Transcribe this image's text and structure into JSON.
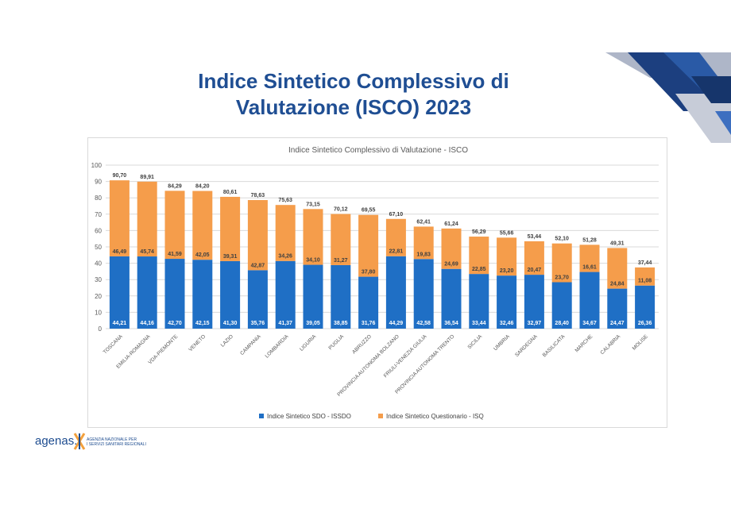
{
  "slide": {
    "title_line1": "Indice Sintetico Complessivo di",
    "title_line2": "Valutazione (ISCO) 2023"
  },
  "colors": {
    "title": "#1f4e93",
    "series_issdo": "#1f6fc5",
    "series_isq": "#f59d4b",
    "deco_dark": "#1c3f7f",
    "deco_light": "#9aa3b8"
  },
  "logo": {
    "name": "agenas.",
    "tagline_1": "AGENZIA NAZIONALE PER",
    "tagline_2": "I SERVIZI SANITARI REGIONALI"
  },
  "chart_data": {
    "type": "bar",
    "stacked": true,
    "title": "Indice Sintetico Complessivo di Valutazione - ISCO",
    "ylim": [
      0,
      100
    ],
    "yticks": [
      0,
      10,
      20,
      30,
      40,
      50,
      60,
      70,
      80,
      90,
      100
    ],
    "grid": true,
    "legend_position": "bottom",
    "categories": [
      "TOSCANA",
      "EMILIA-ROMAGNA",
      "VDA-PIEMONTE",
      "VENETO",
      "LAZIO",
      "CAMPANIA",
      "LOMBARDIA",
      "LIGURIA",
      "PUGLIA",
      "ABRUZZO",
      "PROVINCIA AUTONOMA BOLZANO",
      "FRIULI-VENEZIA GIULIA",
      "PROVINCIA AUTONOMA TRENTO",
      "SICILIA",
      "UMBRIA",
      "SARDEGNA",
      "BASILICATA",
      "MARCHE",
      "CALABRIA",
      "MOLISE"
    ],
    "series": [
      {
        "name": "Indice Sintetico SDO - ISSDO",
        "values": [
          44.21,
          44.16,
          42.7,
          42.15,
          41.3,
          35.76,
          41.37,
          39.05,
          38.85,
          31.76,
          44.29,
          42.58,
          36.54,
          33.44,
          32.46,
          32.97,
          28.4,
          34.67,
          24.47,
          26.36
        ],
        "labels": [
          "44,21",
          "44,16",
          "42,70",
          "42,15",
          "41,30",
          "35,76",
          "41,37",
          "39,05",
          "38,85",
          "31,76",
          "44,29",
          "42,58",
          "36,54",
          "33,44",
          "32,46",
          "32,97",
          "28,40",
          "34,67",
          "24,47",
          "26,36"
        ]
      },
      {
        "name": "Indice Sintetico Questionario - ISQ",
        "values": [
          46.49,
          45.74,
          41.59,
          42.05,
          39.31,
          42.87,
          34.26,
          34.1,
          31.27,
          37.8,
          22.81,
          19.83,
          24.69,
          22.85,
          23.2,
          20.47,
          23.7,
          16.61,
          24.84,
          11.08
        ],
        "labels": [
          "46,49",
          "45,74",
          "41,59",
          "42,05",
          "39,31",
          "42,87",
          "34,26",
          "34,10",
          "31,27",
          "37,80",
          "22,81",
          "19,83",
          "24,69",
          "22,85",
          "23,20",
          "20,47",
          "23,70",
          "16,61",
          "24,84",
          "11,08"
        ]
      }
    ],
    "totals": [
      90.7,
      89.91,
      84.29,
      84.2,
      80.61,
      78.63,
      75.63,
      73.15,
      70.12,
      69.55,
      67.1,
      62.41,
      61.24,
      56.29,
      55.66,
      53.44,
      52.1,
      51.28,
      49.31,
      37.44
    ],
    "total_labels": [
      "90,70",
      "89,91",
      "84,29",
      "84,20",
      "80,61",
      "78,63",
      "75,63",
      "73,15",
      "70,12",
      "69,55",
      "67,10",
      "62,41",
      "61,24",
      "56,29",
      "55,66",
      "53,44",
      "52,10",
      "51,28",
      "49,31",
      "37,44"
    ]
  }
}
